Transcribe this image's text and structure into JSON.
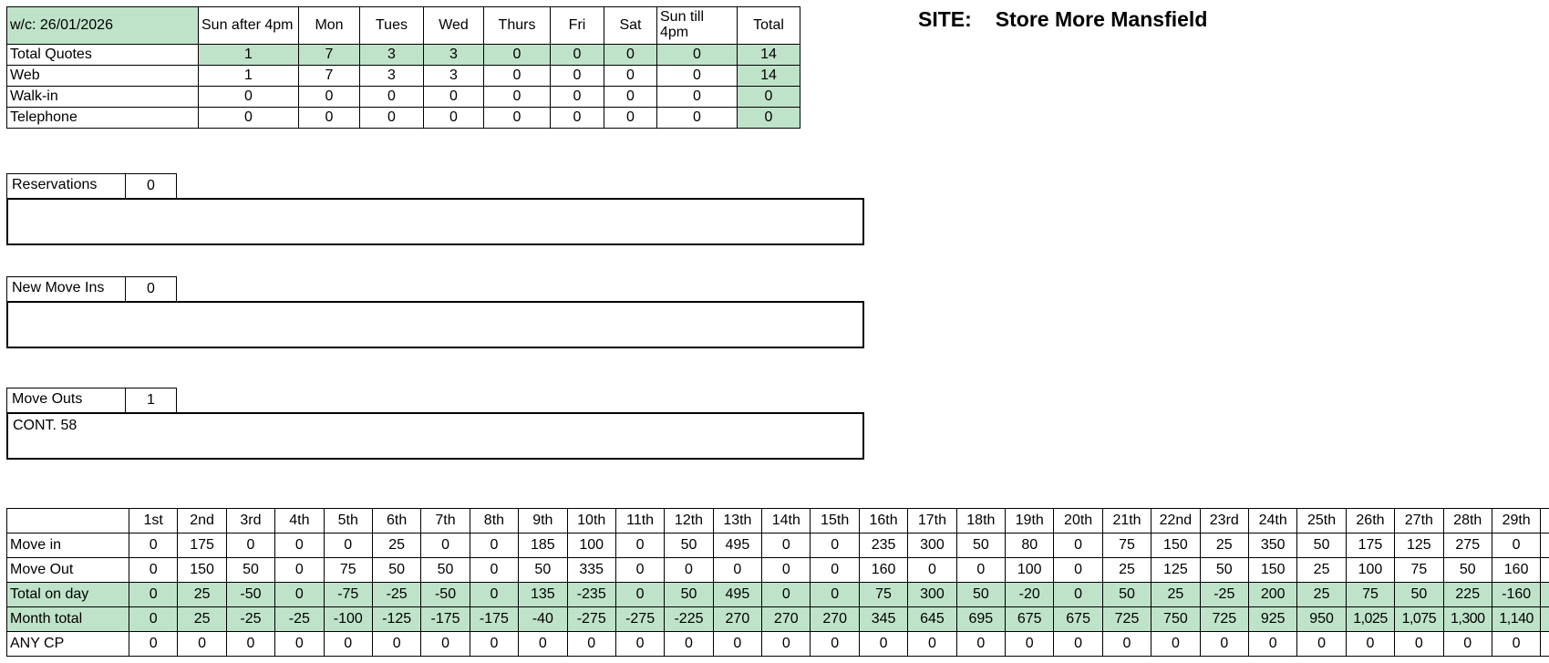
{
  "site": {
    "label": "SITE:",
    "name": "Store More Mansfield"
  },
  "quotes": {
    "week": "w/c:   26/01/2026",
    "columns": [
      "Sun after 4pm",
      "Mon",
      "Tues",
      "Wed",
      "Thurs",
      "Fri",
      "Sat",
      "Sun till 4pm",
      "Total"
    ],
    "rows": [
      {
        "label": "Total Quotes",
        "values": [
          "1",
          "7",
          "3",
          "3",
          "0",
          "0",
          "0",
          "0",
          "14"
        ]
      },
      {
        "label": "Web",
        "values": [
          "1",
          "7",
          "3",
          "3",
          "0",
          "0",
          "0",
          "0",
          "14"
        ]
      },
      {
        "label": "Walk-in",
        "values": [
          "0",
          "0",
          "0",
          "0",
          "0",
          "0",
          "0",
          "0",
          "0"
        ]
      },
      {
        "label": "Telephone",
        "values": [
          "0",
          "0",
          "0",
          "0",
          "0",
          "0",
          "0",
          "0",
          "0"
        ]
      }
    ]
  },
  "sections": [
    {
      "label": "Reservations",
      "count": "0",
      "notes": ""
    },
    {
      "label": "New Move Ins",
      "count": "0",
      "notes": ""
    },
    {
      "label": "Move Outs",
      "count": "1",
      "notes": "CONT. 58"
    }
  ],
  "monthly": {
    "days": [
      "1st",
      "2nd",
      "3rd",
      "4th",
      "5th",
      "6th",
      "7th",
      "8th",
      "9th",
      "10th",
      "11th",
      "12th",
      "13th",
      "14th",
      "15th",
      "16th",
      "17th",
      "18th",
      "19th",
      "20th",
      "21th",
      "22nd",
      "23rd",
      "24th",
      "25th",
      "26th",
      "27th",
      "28th",
      "29th"
    ],
    "rows": [
      {
        "label": "Move in",
        "values": [
          "0",
          "175",
          "0",
          "0",
          "0",
          "25",
          "0",
          "0",
          "185",
          "100",
          "0",
          "50",
          "495",
          "0",
          "0",
          "235",
          "300",
          "50",
          "80",
          "0",
          "75",
          "150",
          "25",
          "350",
          "50",
          "175",
          "125",
          "275",
          "0"
        ]
      },
      {
        "label": "Move Out",
        "values": [
          "0",
          "150",
          "50",
          "0",
          "75",
          "50",
          "50",
          "0",
          "50",
          "335",
          "0",
          "0",
          "0",
          "0",
          "0",
          "160",
          "0",
          "0",
          "100",
          "0",
          "25",
          "125",
          "50",
          "150",
          "25",
          "100",
          "75",
          "50",
          "160"
        ]
      },
      {
        "label": "Total on day",
        "values": [
          "0",
          "25",
          "-50",
          "0",
          "-75",
          "-25",
          "-50",
          "0",
          "135",
          "-235",
          "0",
          "50",
          "495",
          "0",
          "0",
          "75",
          "300",
          "50",
          "-20",
          "0",
          "50",
          "25",
          "-25",
          "200",
          "25",
          "75",
          "50",
          "225",
          "-160"
        ]
      },
      {
        "label": "Month total",
        "values": [
          "0",
          "25",
          "-25",
          "-25",
          "-100",
          "-125",
          "-175",
          "-175",
          "-40",
          "-275",
          "-275",
          "-225",
          "270",
          "270",
          "270",
          "345",
          "645",
          "695",
          "675",
          "675",
          "725",
          "750",
          "725",
          "925",
          "950",
          "1,025",
          "1,075",
          "1,300",
          "1,140"
        ]
      },
      {
        "label": "ANY CP",
        "values": [
          "0",
          "0",
          "0",
          "0",
          "0",
          "0",
          "0",
          "0",
          "0",
          "0",
          "0",
          "0",
          "0",
          "0",
          "0",
          "0",
          "0",
          "0",
          "0",
          "0",
          "0",
          "0",
          "0",
          "0",
          "0",
          "0",
          "0",
          "0",
          "0"
        ]
      }
    ]
  },
  "colors": {
    "highlight": "#bfe3c9"
  }
}
